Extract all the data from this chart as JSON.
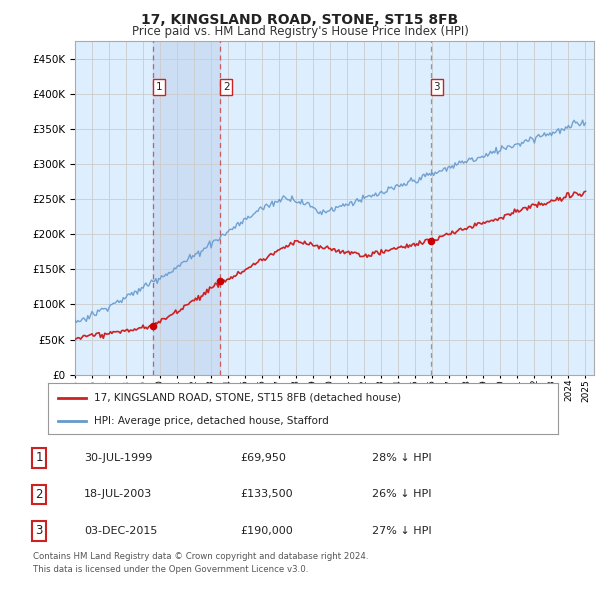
{
  "title": "17, KINGSLAND ROAD, STONE, ST15 8FB",
  "subtitle": "Price paid vs. HM Land Registry's House Price Index (HPI)",
  "ytick_values": [
    0,
    50000,
    100000,
    150000,
    200000,
    250000,
    300000,
    350000,
    400000,
    450000
  ],
  "ylim": [
    0,
    475000
  ],
  "xlim": [
    1995,
    2025.5
  ],
  "sales": [
    {
      "date_num": 1999.58,
      "price": 69950,
      "label": "1"
    },
    {
      "date_num": 2003.55,
      "price": 133500,
      "label": "2"
    },
    {
      "date_num": 2015.92,
      "price": 190000,
      "label": "3"
    }
  ],
  "vline_dates": [
    1999.58,
    2003.55,
    2015.92
  ],
  "vline_styles": [
    "red_dashed",
    "red_dashed",
    "grey_dashed"
  ],
  "shaded_region": [
    1999.58,
    2003.55
  ],
  "legend_entries": [
    {
      "label": "17, KINGSLAND ROAD, STONE, ST15 8FB (detached house)",
      "color": "#cc0000"
    },
    {
      "label": "HPI: Average price, detached house, Stafford",
      "color": "#6699cc"
    }
  ],
  "table_rows": [
    {
      "num": "1",
      "date": "30-JUL-1999",
      "price": "£69,950",
      "hpi": "28% ↓ HPI"
    },
    {
      "num": "2",
      "date": "18-JUL-2003",
      "price": "£133,500",
      "hpi": "26% ↓ HPI"
    },
    {
      "num": "3",
      "date": "03-DEC-2015",
      "price": "£190,000",
      "hpi": "27% ↓ HPI"
    }
  ],
  "footer": "Contains HM Land Registry data © Crown copyright and database right 2024.\nThis data is licensed under the Open Government Licence v3.0.",
  "bg_color": "#ffffff",
  "grid_color": "#cccccc",
  "plot_bg_color": "#ddeeff"
}
